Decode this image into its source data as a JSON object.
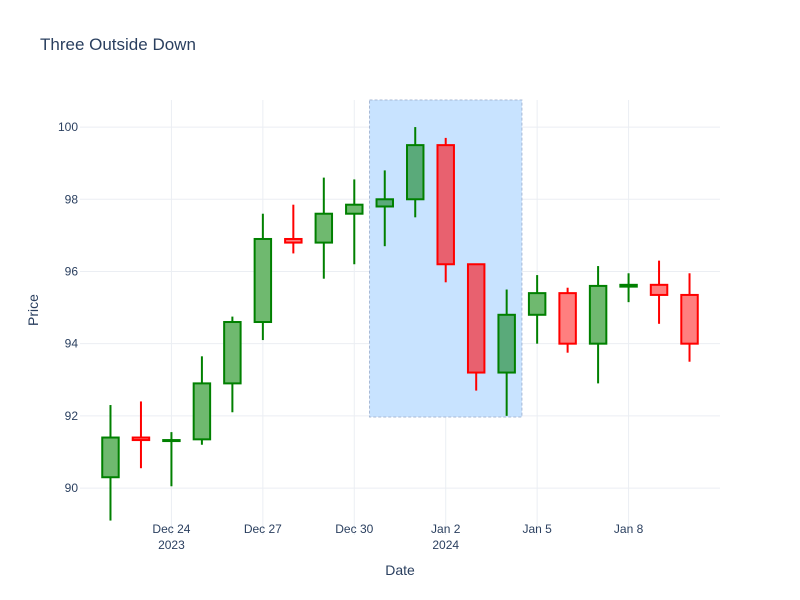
{
  "chart_data": {
    "type": "candlestick",
    "title": "Three Outside Down",
    "xlabel": "Date",
    "ylabel": "Price",
    "ylim": [
      88.7,
      100.75
    ],
    "yticks": [
      90,
      92,
      94,
      96,
      98,
      100
    ],
    "x_range": [
      "2023-12-21",
      "2024-01-11"
    ],
    "xticks": [
      {
        "date": "2023-12-24",
        "label": "Dec 24",
        "sublabel": "2023"
      },
      {
        "date": "2023-12-27",
        "label": "Dec 27",
        "sublabel": ""
      },
      {
        "date": "2023-12-30",
        "label": "Dec 30",
        "sublabel": ""
      },
      {
        "date": "2024-01-02",
        "label": "Jan 2",
        "sublabel": "2024"
      },
      {
        "date": "2024-01-05",
        "label": "Jan 5",
        "sublabel": ""
      },
      {
        "date": "2024-01-08",
        "label": "Jan 8",
        "sublabel": ""
      }
    ],
    "grid": true,
    "colors": {
      "increasing_line": "#008000",
      "increasing_fill": "#6fb96f",
      "decreasing_line": "#ff0000",
      "decreasing_fill": "#ff7f7f",
      "highlight_increasing_fill": "#5aaa7a",
      "highlight_decreasing_fill": "#e8616f",
      "highlight_region": "#c8e3ff",
      "highlight_border": "#a7b8d6"
    },
    "highlight": {
      "start": "2023-12-31",
      "end": "2024-01-04",
      "y_low": 91.97,
      "y_high": 100.75
    },
    "candles": [
      {
        "date": "2023-12-22",
        "open": 90.3,
        "high": 92.3,
        "low": 89.1,
        "close": 91.4
      },
      {
        "date": "2023-12-23",
        "open": 91.4,
        "high": 92.4,
        "low": 90.55,
        "close": 91.33
      },
      {
        "date": "2023-12-24",
        "open": 91.33,
        "high": 91.55,
        "low": 90.05,
        "close": 91.33
      },
      {
        "date": "2023-12-25",
        "open": 91.35,
        "high": 93.65,
        "low": 91.2,
        "close": 92.9
      },
      {
        "date": "2023-12-26",
        "open": 92.9,
        "high": 94.75,
        "low": 92.1,
        "close": 94.6
      },
      {
        "date": "2023-12-27",
        "open": 94.6,
        "high": 97.6,
        "low": 94.1,
        "close": 96.9
      },
      {
        "date": "2023-12-28",
        "open": 96.9,
        "high": 97.85,
        "low": 96.5,
        "close": 96.8
      },
      {
        "date": "2023-12-29",
        "open": 96.8,
        "high": 98.6,
        "low": 95.8,
        "close": 97.6
      },
      {
        "date": "2023-12-30",
        "open": 97.6,
        "high": 98.55,
        "low": 96.2,
        "close": 97.85
      },
      {
        "date": "2023-12-31",
        "open": 97.8,
        "high": 98.8,
        "low": 96.7,
        "close": 98.0
      },
      {
        "date": "2024-01-01",
        "open": 98.0,
        "high": 100.0,
        "low": 97.5,
        "close": 99.5
      },
      {
        "date": "2024-01-02",
        "open": 99.5,
        "high": 99.7,
        "low": 95.7,
        "close": 96.2
      },
      {
        "date": "2024-01-03",
        "open": 96.2,
        "high": 96.2,
        "low": 92.7,
        "close": 93.2
      },
      {
        "date": "2024-01-04",
        "open": 93.2,
        "high": 95.5,
        "low": 92.0,
        "close": 94.8
      },
      {
        "date": "2024-01-05",
        "open": 94.8,
        "high": 95.9,
        "low": 94.0,
        "close": 95.4
      },
      {
        "date": "2024-01-06",
        "open": 95.4,
        "high": 95.55,
        "low": 93.75,
        "close": 94.0
      },
      {
        "date": "2024-01-07",
        "open": 94.0,
        "high": 96.15,
        "low": 92.9,
        "close": 95.6
      },
      {
        "date": "2024-01-08",
        "open": 95.58,
        "high": 95.95,
        "low": 95.15,
        "close": 95.63
      },
      {
        "date": "2024-01-09",
        "open": 95.63,
        "high": 96.3,
        "low": 94.55,
        "close": 95.35
      },
      {
        "date": "2024-01-10",
        "open": 95.35,
        "high": 95.95,
        "low": 93.5,
        "close": 94.0
      }
    ]
  }
}
